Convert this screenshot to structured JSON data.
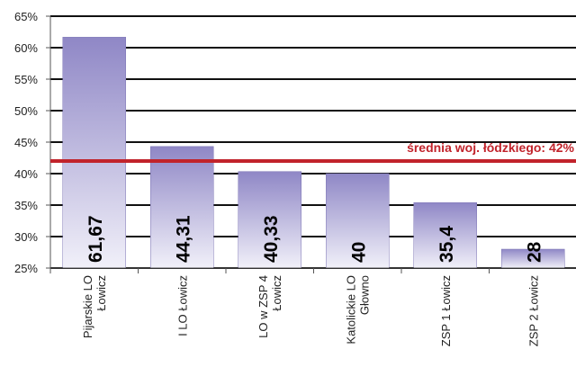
{
  "chart_data": {
    "type": "bar",
    "categories": [
      "Pijarskie LO\nŁowicz",
      "I LO Łowicz",
      "LO w ZSP 4\nŁowicz",
      "Katolickie LO\nGłowno",
      "ZSP 1 Łowicz",
      "ZSP 2 Łowicz"
    ],
    "values": [
      61.67,
      44.31,
      40.33,
      40,
      35.4,
      28
    ],
    "value_labels": [
      "61,67",
      "44,31",
      "40,33",
      "40",
      "35,4",
      "28"
    ],
    "color": "#8f87c6",
    "ylim": [
      25,
      65
    ],
    "yticks": [
      {
        "value": 25,
        "label": "25%"
      },
      {
        "value": 30,
        "label": "30%"
      },
      {
        "value": 35,
        "label": "35%"
      },
      {
        "value": 40,
        "label": "40%"
      },
      {
        "value": 45,
        "label": "45%"
      },
      {
        "value": 50,
        "label": "50%"
      },
      {
        "value": 55,
        "label": "55%"
      },
      {
        "value": 60,
        "label": "60%"
      },
      {
        "value": 65,
        "label": "65%"
      }
    ],
    "grid": true,
    "average": {
      "value": 42,
      "label": "średnia woj. łódzkiego: 42%",
      "color": "#c1232b"
    }
  }
}
